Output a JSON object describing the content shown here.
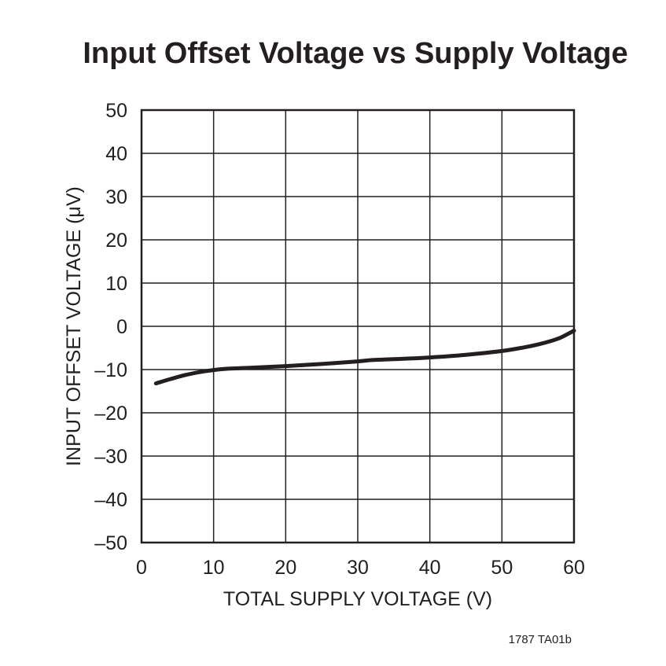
{
  "chart_data": {
    "type": "line",
    "title": "Input Offset Voltage vs Supply Voltage",
    "xlabel": "TOTAL SUPPLY VOLTAGE (V)",
    "ylabel": "INPUT OFFSET VOLTAGE (μV)",
    "xlim": [
      0,
      60
    ],
    "ylim": [
      -50,
      50
    ],
    "x_ticks": [
      0,
      10,
      20,
      30,
      40,
      50,
      60
    ],
    "y_ticks": [
      50,
      40,
      30,
      20,
      10,
      0,
      -10,
      -20,
      -30,
      -40,
      -50
    ],
    "x_tick_labels": [
      "0",
      "10",
      "20",
      "30",
      "40",
      "50",
      "60"
    ],
    "y_tick_labels": [
      "50",
      "40",
      "30",
      "20",
      "10",
      "0",
      "–10",
      "–20",
      "–30",
      "–40",
      "–50"
    ],
    "grid": true,
    "legend": "none",
    "series": [
      {
        "x": [
          2,
          4,
          6,
          8,
          10,
          12,
          15,
          20,
          25,
          30,
          32,
          35,
          40,
          45,
          50,
          53,
          55,
          57,
          58,
          59,
          60
        ],
        "y": [
          -13.2,
          -12.2,
          -11.3,
          -10.6,
          -10.1,
          -9.8,
          -9.6,
          -9.2,
          -8.7,
          -8.1,
          -7.8,
          -7.6,
          -7.2,
          -6.6,
          -5.7,
          -4.9,
          -4.2,
          -3.3,
          -2.7,
          -1.9,
          -1.0
        ]
      }
    ]
  },
  "figure_id": "1787 TA01b"
}
